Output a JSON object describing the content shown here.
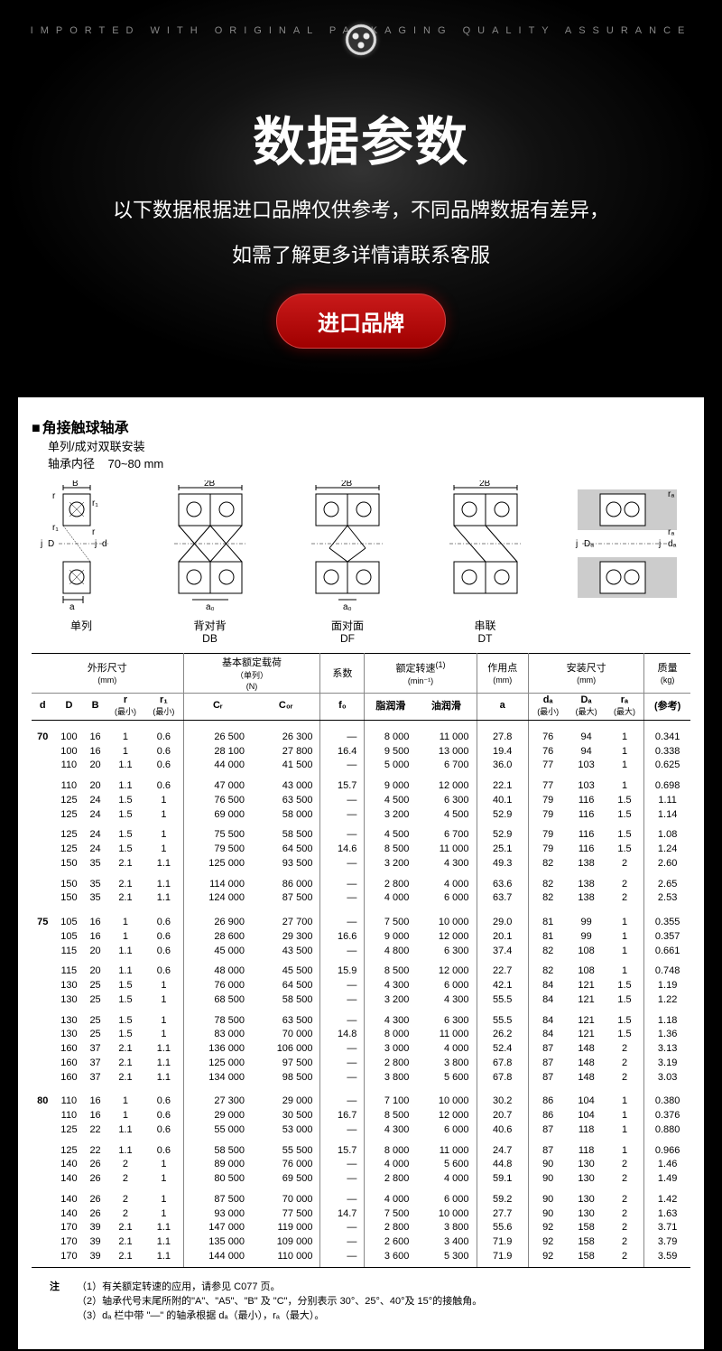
{
  "header": {
    "top_tagline": "IMPORTED  WITH  ORIGINAL  PACKAGING  QUALITY  ASSURANCE",
    "main_title": "数据参数",
    "subtitle1": "以下数据根据进口品牌仅供参考，不同品牌数据有差异，",
    "subtitle2": "如需了解更多详情请联系客服",
    "button_label": "进口品牌",
    "colors": {
      "bg": "#000000",
      "glow": "#333333",
      "text": "#ffffff",
      "tagline": "#888888",
      "button_grad_top": "#c91a1a",
      "button_grad_bot": "#a00000"
    }
  },
  "sheet": {
    "title": "角接触球轴承",
    "sub1": "单列/成对双联安装",
    "sub2_prefix": "轴承内径",
    "sub2_range": "70~80 mm",
    "diagrams": [
      {
        "label_top": "单列",
        "label_bot": ""
      },
      {
        "label_top": "背对背",
        "label_bot": "DB"
      },
      {
        "label_top": "面对面",
        "label_bot": "DF"
      },
      {
        "label_top": "串联",
        "label_bot": "DT"
      },
      {
        "label_top": "",
        "label_bot": ""
      }
    ],
    "dim_labels": [
      "B",
      "r",
      "r₁",
      "r₁",
      "r",
      "j",
      "D",
      "j",
      "d",
      "a",
      "2B",
      "a₀",
      "2B",
      "a₀",
      "2B",
      "rₐ",
      "rₐ",
      "j",
      "Dₐ",
      "j",
      "dₐ"
    ]
  },
  "table": {
    "header_groups": [
      {
        "label": "外形尺寸",
        "unit": "(mm)",
        "span": 5
      },
      {
        "label": "基本额定载荷",
        "sub": "（单列）",
        "unit": "(N)",
        "span": 2
      },
      {
        "label": "系数",
        "span": 1
      },
      {
        "label": "额定转速",
        "sup": "(1)",
        "unit": "(min⁻¹)",
        "span": 2
      },
      {
        "label": "作用点",
        "unit": "(mm)",
        "span": 1
      },
      {
        "label": "安装尺寸",
        "unit": "(mm)",
        "span": 3
      },
      {
        "label": "质量",
        "unit": "(kg)",
        "span": 1
      }
    ],
    "columns": [
      "d",
      "D",
      "B",
      "r",
      "r₁",
      "Cᵣ",
      "C₀ᵣ",
      "f₀",
      "脂润滑",
      "油润滑",
      "a",
      "dₐ",
      "Dₐ",
      "rₐ",
      "(参考)"
    ],
    "col_notes": [
      "",
      "",
      "",
      "(最小)",
      "(最小)",
      "",
      "",
      "",
      "",
      "",
      "",
      "(最小)",
      "(最大)",
      "(最大)",
      ""
    ],
    "rows": [
      {
        "g": "d",
        "data": [
          "70",
          "100",
          "16",
          "1",
          "0.6",
          "26 500",
          "26 300",
          "—",
          "8 000",
          "11 000",
          "27.8",
          "76",
          "94",
          "1",
          "0.341"
        ]
      },
      {
        "data": [
          "",
          "100",
          "16",
          "1",
          "0.6",
          "28 100",
          "27 800",
          "16.4",
          "9 500",
          "13 000",
          "19.4",
          "76",
          "94",
          "1",
          "0.338"
        ]
      },
      {
        "data": [
          "",
          "110",
          "20",
          "1.1",
          "0.6",
          "44 000",
          "41 500",
          "—",
          "5 000",
          "6 700",
          "36.0",
          "77",
          "103",
          "1",
          "0.625"
        ]
      },
      {
        "g": "grp",
        "data": [
          "",
          "110",
          "20",
          "1.1",
          "0.6",
          "47 000",
          "43 000",
          "15.7",
          "9 000",
          "12 000",
          "22.1",
          "77",
          "103",
          "1",
          "0.698"
        ]
      },
      {
        "data": [
          "",
          "125",
          "24",
          "1.5",
          "1",
          "76 500",
          "63 500",
          "—",
          "4 500",
          "6 300",
          "40.1",
          "79",
          "116",
          "1.5",
          "1.11"
        ]
      },
      {
        "data": [
          "",
          "125",
          "24",
          "1.5",
          "1",
          "69 000",
          "58 000",
          "—",
          "3 200",
          "4 500",
          "52.9",
          "79",
          "116",
          "1.5",
          "1.14"
        ]
      },
      {
        "g": "grp",
        "data": [
          "",
          "125",
          "24",
          "1.5",
          "1",
          "75 500",
          "58 500",
          "—",
          "4 500",
          "6 700",
          "52.9",
          "79",
          "116",
          "1.5",
          "1.08"
        ]
      },
      {
        "data": [
          "",
          "125",
          "24",
          "1.5",
          "1",
          "79 500",
          "64 500",
          "14.6",
          "8 500",
          "11 000",
          "25.1",
          "79",
          "116",
          "1.5",
          "1.24"
        ]
      },
      {
        "data": [
          "",
          "150",
          "35",
          "2.1",
          "1.1",
          "125 000",
          "93 500",
          "—",
          "3 200",
          "4 300",
          "49.3",
          "82",
          "138",
          "2",
          "2.60"
        ]
      },
      {
        "g": "grp",
        "data": [
          "",
          "150",
          "35",
          "2.1",
          "1.1",
          "114 000",
          "86 000",
          "—",
          "2 800",
          "4 000",
          "63.6",
          "82",
          "138",
          "2",
          "2.65"
        ]
      },
      {
        "data": [
          "",
          "150",
          "35",
          "2.1",
          "1.1",
          "124 000",
          "87 500",
          "—",
          "4 000",
          "6 000",
          "63.7",
          "82",
          "138",
          "2",
          "2.53"
        ]
      },
      {
        "g": "d",
        "data": [
          "75",
          "105",
          "16",
          "1",
          "0.6",
          "26 900",
          "27 700",
          "—",
          "7 500",
          "10 000",
          "29.0",
          "81",
          "99",
          "1",
          "0.355"
        ]
      },
      {
        "data": [
          "",
          "105",
          "16",
          "1",
          "0.6",
          "28 600",
          "29 300",
          "16.6",
          "9 000",
          "12 000",
          "20.1",
          "81",
          "99",
          "1",
          "0.357"
        ]
      },
      {
        "data": [
          "",
          "115",
          "20",
          "1.1",
          "0.6",
          "45 000",
          "43 500",
          "—",
          "4 800",
          "6 300",
          "37.4",
          "82",
          "108",
          "1",
          "0.661"
        ]
      },
      {
        "g": "grp",
        "data": [
          "",
          "115",
          "20",
          "1.1",
          "0.6",
          "48 000",
          "45 500",
          "15.9",
          "8 500",
          "12 000",
          "22.7",
          "82",
          "108",
          "1",
          "0.748"
        ]
      },
      {
        "data": [
          "",
          "130",
          "25",
          "1.5",
          "1",
          "76 000",
          "64 500",
          "—",
          "4 300",
          "6 000",
          "42.1",
          "84",
          "121",
          "1.5",
          "1.19"
        ]
      },
      {
        "data": [
          "",
          "130",
          "25",
          "1.5",
          "1",
          "68 500",
          "58 500",
          "—",
          "3 200",
          "4 300",
          "55.5",
          "84",
          "121",
          "1.5",
          "1.22"
        ]
      },
      {
        "g": "grp",
        "data": [
          "",
          "130",
          "25",
          "1.5",
          "1",
          "78 500",
          "63 500",
          "—",
          "4 300",
          "6 300",
          "55.5",
          "84",
          "121",
          "1.5",
          "1.18"
        ]
      },
      {
        "data": [
          "",
          "130",
          "25",
          "1.5",
          "1",
          "83 000",
          "70 000",
          "14.8",
          "8 000",
          "11 000",
          "26.2",
          "84",
          "121",
          "1.5",
          "1.36"
        ]
      },
      {
        "data": [
          "",
          "160",
          "37",
          "2.1",
          "1.1",
          "136 000",
          "106 000",
          "—",
          "3 000",
          "4 000",
          "52.4",
          "87",
          "148",
          "2",
          "3.13"
        ]
      },
      {
        "data": [
          "",
          "160",
          "37",
          "2.1",
          "1.1",
          "125 000",
          "97 500",
          "—",
          "2 800",
          "3 800",
          "67.8",
          "87",
          "148",
          "2",
          "3.19"
        ]
      },
      {
        "data": [
          "",
          "160",
          "37",
          "2.1",
          "1.1",
          "134 000",
          "98 500",
          "—",
          "3 800",
          "5 600",
          "67.8",
          "87",
          "148",
          "2",
          "3.03"
        ]
      },
      {
        "g": "d",
        "data": [
          "80",
          "110",
          "16",
          "1",
          "0.6",
          "27 300",
          "29 000",
          "—",
          "7 100",
          "10 000",
          "30.2",
          "86",
          "104",
          "1",
          "0.380"
        ]
      },
      {
        "data": [
          "",
          "110",
          "16",
          "1",
          "0.6",
          "29 000",
          "30 500",
          "16.7",
          "8 500",
          "12 000",
          "20.7",
          "86",
          "104",
          "1",
          "0.376"
        ]
      },
      {
        "data": [
          "",
          "125",
          "22",
          "1.1",
          "0.6",
          "55 000",
          "53 000",
          "—",
          "4 300",
          "6 000",
          "40.6",
          "87",
          "118",
          "1",
          "0.880"
        ]
      },
      {
        "g": "grp",
        "data": [
          "",
          "125",
          "22",
          "1.1",
          "0.6",
          "58 500",
          "55 500",
          "15.7",
          "8 000",
          "11 000",
          "24.7",
          "87",
          "118",
          "1",
          "0.966"
        ]
      },
      {
        "data": [
          "",
          "140",
          "26",
          "2",
          "1",
          "89 000",
          "76 000",
          "—",
          "4 000",
          "5 600",
          "44.8",
          "90",
          "130",
          "2",
          "1.46"
        ]
      },
      {
        "data": [
          "",
          "140",
          "26",
          "2",
          "1",
          "80 500",
          "69 500",
          "—",
          "2 800",
          "4 000",
          "59.1",
          "90",
          "130",
          "2",
          "1.49"
        ]
      },
      {
        "g": "grp",
        "data": [
          "",
          "140",
          "26",
          "2",
          "1",
          "87 500",
          "70 000",
          "—",
          "4 000",
          "6 000",
          "59.2",
          "90",
          "130",
          "2",
          "1.42"
        ]
      },
      {
        "data": [
          "",
          "140",
          "26",
          "2",
          "1",
          "93 000",
          "77 500",
          "14.7",
          "7 500",
          "10 000",
          "27.7",
          "90",
          "130",
          "2",
          "1.63"
        ]
      },
      {
        "data": [
          "",
          "170",
          "39",
          "2.1",
          "1.1",
          "147 000",
          "119 000",
          "—",
          "2 800",
          "3 800",
          "55.6",
          "92",
          "158",
          "2",
          "3.71"
        ]
      },
      {
        "data": [
          "",
          "170",
          "39",
          "2.1",
          "1.1",
          "135 000",
          "109 000",
          "—",
          "2 600",
          "3 400",
          "71.9",
          "92",
          "158",
          "2",
          "3.79"
        ]
      },
      {
        "data": [
          "",
          "170",
          "39",
          "2.1",
          "1.1",
          "144 000",
          "110 000",
          "—",
          "3 600",
          "5 300",
          "71.9",
          "92",
          "158",
          "2",
          "3.59"
        ]
      }
    ],
    "vline_after_cols": [
      4,
      6,
      7,
      9,
      10,
      13
    ]
  },
  "notes": {
    "label": "注",
    "items": [
      "（1）有关额定转速的应用，请参见 C077 页。",
      "（2）轴承代号末尾所附的\"A\"、\"A5\"、\"B\" 及 \"C\"，分别表示 30°、25°、40°及 15°的接触角。",
      "（3）dₐ 栏中带 \"—\" 的轴承根据 dₐ（最小），rₐ（最大）。"
    ]
  }
}
